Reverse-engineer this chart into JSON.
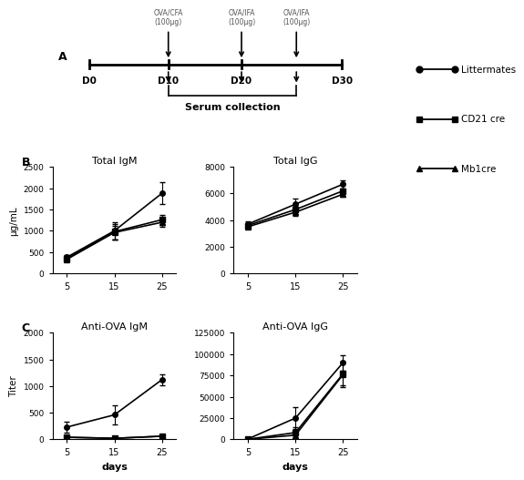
{
  "days": [
    5,
    15,
    25
  ],
  "total_igm": {
    "littermates": {
      "y": [
        380,
        1000,
        1880
      ],
      "yerr": [
        50,
        200,
        250
      ]
    },
    "cd21cre": {
      "y": [
        350,
        980,
        1260
      ],
      "yerr": [
        40,
        180,
        120
      ]
    },
    "mb1cre": {
      "y": [
        330,
        960,
        1200
      ],
      "yerr": [
        40,
        160,
        100
      ]
    }
  },
  "total_igg": {
    "littermates": {
      "y": [
        3700,
        5200,
        6700
      ],
      "yerr": [
        200,
        400,
        300
      ]
    },
    "cd21cre": {
      "y": [
        3600,
        4800,
        6200
      ],
      "yerr": [
        180,
        350,
        200
      ]
    },
    "mb1cre": {
      "y": [
        3500,
        4600,
        5950
      ],
      "yerr": [
        160,
        300,
        200
      ]
    }
  },
  "anti_ova_igm": {
    "littermates": {
      "y": [
        230,
        460,
        1120
      ],
      "yerr": [
        100,
        180,
        100
      ]
    },
    "cd21cre": {
      "y": [
        40,
        20,
        60
      ],
      "yerr": [
        15,
        10,
        25
      ]
    },
    "mb1cre": {
      "y": [
        40,
        20,
        60
      ],
      "yerr": [
        15,
        10,
        25
      ]
    }
  },
  "anti_ova_igg": {
    "littermates": {
      "y": [
        500,
        25000,
        90000
      ],
      "yerr": [
        200,
        13000,
        9000
      ]
    },
    "cd21cre": {
      "y": [
        200,
        8000,
        77000
      ],
      "yerr": [
        100,
        6000,
        14000
      ]
    },
    "mb1cre": {
      "y": [
        100,
        5000,
        76000
      ],
      "yerr": [
        100,
        4000,
        15000
      ]
    }
  },
  "colors": {
    "littermates": "#000000",
    "cd21cre": "#000000",
    "mb1cre": "#000000"
  },
  "markers": {
    "littermates": "o",
    "cd21cre": "s",
    "mb1cre": "^"
  },
  "legend_labels": [
    "Littermates",
    "CD21 cre",
    "Mb1cre"
  ],
  "panel_B_labels": [
    "Total IgM",
    "Total IgG"
  ],
  "panel_C_labels": [
    "Anti-OVA IgM",
    "Anti-OVA IgG"
  ],
  "ylabel_B_left": "μg/mL",
  "ylabel_C_left": "Titer",
  "xlabel": "days",
  "ylim_igm": [
    0,
    2500
  ],
  "ylim_igg": [
    0,
    8000
  ],
  "ylim_anti_igm": [
    0,
    2000
  ],
  "ylim_anti_igg": [
    0,
    125000
  ],
  "yticks_igm": [
    0,
    500,
    1000,
    1500,
    2000,
    2500
  ],
  "yticks_igg": [
    0,
    2000,
    4000,
    6000,
    8000
  ],
  "yticks_anti_igm": [
    0,
    500,
    1000,
    1500,
    2000
  ],
  "yticks_anti_igg": [
    0,
    25000,
    50000,
    75000,
    100000,
    125000
  ],
  "inj_labels": [
    "OVA/CFA\n(100μg)",
    "OVA/IFA\n(100μg)",
    "OVA/IFA\n(100μg)"
  ],
  "day_labels": [
    "D0",
    "D10",
    "D20",
    "D30"
  ]
}
